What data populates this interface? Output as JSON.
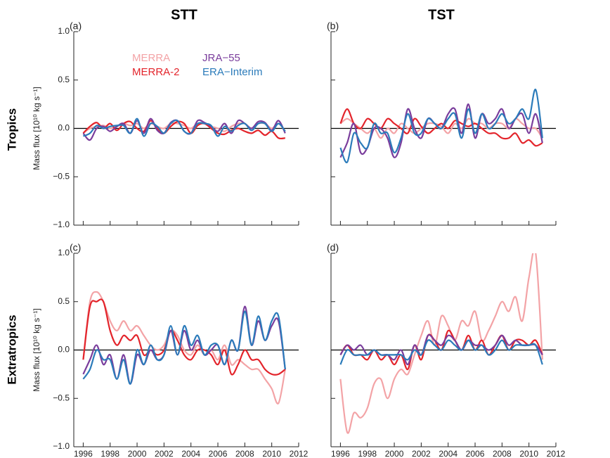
{
  "column_titles": [
    "STT",
    "TST"
  ],
  "row_labels": [
    "Tropics",
    "Extratropics"
  ],
  "legend": [
    {
      "name": "MERRA",
      "color": "#f3a3a6"
    },
    {
      "name": "MERRA-2",
      "color": "#e3242b"
    },
    {
      "name": "JRA−55",
      "color": "#7a3d9c"
    },
    {
      "name": "ERA−Interim",
      "color": "#2b7bba"
    }
  ],
  "chart_data": [
    {
      "type": "line",
      "panel_label": "(a)",
      "ylabel": "Mass flux [10¹⁰ kg s⁻¹]",
      "xlim": [
        1995.3,
        2012
      ],
      "ylim": [
        -1.0,
        1.0
      ],
      "xtick_labels": false,
      "ytick_labels": true,
      "hline": 0,
      "xticks": [
        1996,
        1998,
        2000,
        2002,
        2004,
        2006,
        2008,
        2010,
        2012
      ],
      "yticks": [
        {
          "value": -1.0,
          "label": "−1.0"
        },
        {
          "value": -0.5,
          "label": "−0.5"
        },
        {
          "value": 0.0,
          "label": "0.0"
        },
        {
          "value": 0.5,
          "label": "0.5"
        },
        {
          "value": 1.0,
          "label": "1.0"
        }
      ],
      "x": [
        1996,
        1996.5,
        1997,
        1997.5,
        1998,
        1998.5,
        1999,
        1999.5,
        2000,
        2000.5,
        2001,
        2001.5,
        2002,
        2002.5,
        2003,
        2003.5,
        2004,
        2004.5,
        2005,
        2005.5,
        2006,
        2006.5,
        2007,
        2007.5,
        2008,
        2008.5,
        2009,
        2009.5,
        2010,
        2010.5,
        2011
      ],
      "series": [
        {
          "color": "#f3a3a6",
          "values": [
            -0.05,
            0.0,
            0.02,
            0.03,
            0.0,
            0.02,
            0.05,
            0.03,
            0.05,
            0.0,
            0.05,
            0.02,
            0.0,
            0.05,
            0.05,
            0.03,
            0.0,
            0.05,
            0.05,
            0.02,
            0.0,
            -0.03,
            0.02,
            0.05,
            0.05,
            0.0,
            0.05,
            0.05,
            0.0,
            0.05,
            -0.03
          ]
        },
        {
          "color": "#e3242b",
          "values": [
            -0.05,
            0.02,
            0.06,
            0.0,
            0.05,
            -0.02,
            0.05,
            0.07,
            0.0,
            -0.03,
            0.08,
            0.0,
            -0.05,
            0.02,
            0.07,
            0.05,
            -0.05,
            0.03,
            0.05,
            0.0,
            -0.05,
            -0.06,
            -0.02,
            0.0,
            -0.03,
            -0.05,
            -0.02,
            -0.07,
            -0.03,
            -0.1,
            -0.1
          ]
        },
        {
          "color": "#7a3d9c",
          "values": [
            -0.05,
            -0.12,
            0.0,
            0.02,
            -0.03,
            0.02,
            0.05,
            -0.05,
            0.08,
            -0.05,
            0.1,
            -0.02,
            -0.05,
            0.06,
            0.08,
            -0.03,
            -0.05,
            0.08,
            0.06,
            0.02,
            -0.03,
            0.05,
            -0.05,
            0.08,
            0.05,
            0.0,
            0.07,
            0.06,
            -0.02,
            0.08,
            -0.05
          ]
        },
        {
          "color": "#2b7bba",
          "values": [
            -0.08,
            -0.05,
            0.03,
            0.0,
            0.02,
            0.03,
            0.03,
            -0.05,
            0.1,
            -0.08,
            0.05,
            0.02,
            -0.05,
            0.05,
            0.08,
            -0.03,
            -0.05,
            0.05,
            0.05,
            0.03,
            -0.08,
            0.02,
            -0.03,
            0.03,
            0.05,
            -0.02,
            0.05,
            0.05,
            -0.03,
            0.05,
            -0.03
          ]
        }
      ]
    },
    {
      "type": "line",
      "panel_label": "(b)",
      "xlim": [
        1995.3,
        2012
      ],
      "ylim": [
        -1.0,
        1.0
      ],
      "xtick_labels": false,
      "ytick_labels": false,
      "hline": 0,
      "xticks": [
        1996,
        1998,
        2000,
        2002,
        2004,
        2006,
        2008,
        2010,
        2012
      ],
      "yticks": [
        -1.0,
        -0.5,
        0.0,
        0.5,
        1.0
      ],
      "x": [
        1996,
        1996.5,
        1997,
        1997.5,
        1998,
        1998.5,
        1999,
        1999.5,
        2000,
        2000.5,
        2001,
        2001.5,
        2002,
        2002.5,
        2003,
        2003.5,
        2004,
        2004.5,
        2005,
        2005.5,
        2006,
        2006.5,
        2007,
        2007.5,
        2008,
        2008.5,
        2009,
        2009.5,
        2010,
        2010.5,
        2011
      ],
      "series": [
        {
          "color": "#f3a3a6",
          "values": [
            0.05,
            0.1,
            0.05,
            0.0,
            -0.05,
            0.0,
            -0.1,
            0.0,
            -0.05,
            0.05,
            0.0,
            -0.05,
            0.0,
            0.05,
            0.05,
            0.02,
            -0.05,
            0.05,
            0.0,
            0.1,
            0.05,
            0.05,
            0.0,
            0.05,
            0.05,
            0.0,
            0.1,
            0.05,
            0.0,
            0.0,
            -0.1
          ]
        },
        {
          "color": "#e3242b",
          "values": [
            0.05,
            0.2,
            0.05,
            0.0,
            0.1,
            0.05,
            0.0,
            0.1,
            0.05,
            0.0,
            -0.05,
            0.1,
            0.02,
            -0.05,
            0.0,
            0.05,
            0.0,
            0.08,
            0.05,
            0.02,
            0.05,
            0.0,
            -0.05,
            -0.05,
            -0.1,
            -0.1,
            -0.05,
            -0.15,
            -0.12,
            -0.18,
            -0.15
          ]
        },
        {
          "color": "#7a3d9c",
          "values": [
            -0.3,
            -0.15,
            0.05,
            -0.25,
            -0.2,
            0.0,
            0.0,
            -0.1,
            -0.3,
            -0.15,
            0.2,
            0.0,
            -0.1,
            0.1,
            0.05,
            0.0,
            0.15,
            0.2,
            -0.05,
            0.25,
            -0.1,
            0.15,
            0.05,
            0.1,
            0.2,
            0.0,
            0.1,
            0.15,
            -0.05,
            0.15,
            -0.15
          ]
        },
        {
          "color": "#2b7bba",
          "values": [
            -0.2,
            -0.35,
            -0.05,
            -0.15,
            -0.2,
            0.05,
            -0.05,
            -0.05,
            -0.25,
            -0.1,
            0.15,
            -0.05,
            -0.05,
            0.1,
            0.05,
            0.0,
            0.1,
            0.15,
            -0.1,
            0.2,
            -0.05,
            0.15,
            0.0,
            0.05,
            0.15,
            0.05,
            0.1,
            0.2,
            0.1,
            0.4,
            -0.1
          ]
        }
      ]
    },
    {
      "type": "line",
      "panel_label": "(c)",
      "ylabel": "Mass flux [10¹⁰ kg s⁻¹]",
      "xlim": [
        1995.3,
        2012
      ],
      "ylim": [
        -1.0,
        1.0
      ],
      "xtick_labels": true,
      "ytick_labels": true,
      "hline": 0,
      "xticks": [
        1996,
        1998,
        2000,
        2002,
        2004,
        2006,
        2008,
        2010,
        2012
      ],
      "yticks": [
        {
          "value": -1.0,
          "label": "−1.0"
        },
        {
          "value": -0.5,
          "label": "−0.5"
        },
        {
          "value": 0.0,
          "label": "0.0"
        },
        {
          "value": 0.5,
          "label": "0.5"
        },
        {
          "value": 1.0,
          "label": "1.0"
        }
      ],
      "x": [
        1996,
        1996.5,
        1997,
        1997.5,
        1998,
        1998.5,
        1999,
        1999.5,
        2000,
        2000.5,
        2001,
        2001.5,
        2002,
        2002.5,
        2003,
        2003.5,
        2004,
        2004.5,
        2005,
        2005.5,
        2006,
        2006.5,
        2007,
        2007.5,
        2008,
        2008.5,
        2009,
        2009.5,
        2010,
        2010.5,
        2011
      ],
      "series": [
        {
          "color": "#f3a3a6",
          "values": [
            -0.1,
            0.5,
            0.6,
            0.5,
            0.3,
            0.2,
            0.3,
            0.2,
            0.25,
            0.15,
            0.05,
            0.0,
            0.05,
            0.2,
            0.15,
            0.0,
            -0.05,
            0.05,
            -0.05,
            0.0,
            -0.1,
            0.05,
            -0.15,
            -0.1,
            -0.15,
            -0.2,
            -0.2,
            -0.3,
            -0.4,
            -0.55,
            -0.2
          ]
        },
        {
          "color": "#e3242b",
          "values": [
            -0.1,
            0.45,
            0.5,
            0.5,
            0.2,
            0.05,
            0.15,
            0.1,
            0.15,
            -0.05,
            0.0,
            -0.05,
            0.0,
            0.2,
            0.1,
            -0.05,
            -0.1,
            0.0,
            0.0,
            -0.05,
            -0.15,
            0.0,
            -0.25,
            -0.15,
            0.0,
            -0.1,
            -0.1,
            -0.2,
            -0.25,
            -0.25,
            -0.2
          ]
        },
        {
          "color": "#7a3d9c",
          "values": [
            -0.25,
            -0.1,
            0.05,
            -0.15,
            -0.05,
            -0.3,
            -0.05,
            -0.35,
            -0.05,
            -0.15,
            0.0,
            -0.1,
            -0.05,
            0.2,
            -0.05,
            0.2,
            0.0,
            0.1,
            -0.05,
            0.0,
            0.05,
            -0.15,
            0.1,
            0.0,
            0.45,
            0.05,
            0.3,
            0.1,
            0.25,
            0.3,
            -0.2
          ]
        },
        {
          "color": "#2b7bba",
          "values": [
            -0.3,
            -0.2,
            0.0,
            -0.1,
            -0.1,
            -0.3,
            -0.1,
            -0.35,
            0.0,
            -0.15,
            0.05,
            -0.1,
            -0.05,
            0.25,
            -0.05,
            0.25,
            0.05,
            0.15,
            -0.05,
            0.05,
            0.05,
            -0.15,
            0.1,
            0.0,
            0.4,
            0.05,
            0.35,
            0.1,
            0.3,
            0.35,
            -0.2
          ]
        }
      ]
    },
    {
      "type": "line",
      "panel_label": "(d)",
      "xlim": [
        1995.3,
        2012
      ],
      "ylim": [
        -1.0,
        1.0
      ],
      "xtick_labels": true,
      "ytick_labels": false,
      "hline": 0,
      "xticks": [
        1996,
        1998,
        2000,
        2002,
        2004,
        2006,
        2008,
        2010,
        2012
      ],
      "yticks": [
        -1.0,
        -0.5,
        0.0,
        0.5,
        1.0
      ],
      "x": [
        1996,
        1996.5,
        1997,
        1997.5,
        1998,
        1998.5,
        1999,
        1999.5,
        2000,
        2000.5,
        2001,
        2001.5,
        2002,
        2002.5,
        2003,
        2003.5,
        2004,
        2004.5,
        2005,
        2005.5,
        2006,
        2006.5,
        2007,
        2007.5,
        2008,
        2008.5,
        2009,
        2009.5,
        2010,
        2010.5,
        2011
      ],
      "series": [
        {
          "color": "#f3a3a6",
          "values": [
            -0.3,
            -0.85,
            -0.65,
            -0.7,
            -0.6,
            -0.35,
            -0.3,
            -0.5,
            -0.3,
            -0.2,
            -0.25,
            -0.05,
            0.15,
            0.3,
            0.05,
            0.35,
            0.25,
            0.1,
            0.3,
            0.25,
            0.4,
            0.1,
            0.2,
            0.35,
            0.5,
            0.4,
            0.55,
            0.3,
            0.75,
            1.0,
            -0.1
          ]
        },
        {
          "color": "#e3242b",
          "values": [
            -0.05,
            0.05,
            -0.05,
            -0.05,
            -0.1,
            0.0,
            -0.1,
            -0.05,
            -0.15,
            -0.05,
            -0.2,
            0.05,
            -0.1,
            0.15,
            0.1,
            0.0,
            0.2,
            0.1,
            0.0,
            0.15,
            0.0,
            0.1,
            -0.05,
            0.05,
            0.15,
            0.0,
            0.1,
            0.1,
            0.05,
            0.1,
            -0.05
          ]
        },
        {
          "color": "#7a3d9c",
          "values": [
            -0.05,
            0.05,
            0.0,
            0.05,
            -0.05,
            0.0,
            -0.05,
            -0.05,
            -0.1,
            0.0,
            -0.15,
            0.05,
            -0.05,
            0.15,
            0.1,
            0.05,
            0.15,
            0.1,
            0.0,
            0.1,
            0.05,
            0.05,
            0.0,
            0.05,
            0.15,
            0.05,
            0.1,
            0.05,
            0.05,
            0.05,
            -0.05
          ]
        },
        {
          "color": "#2b7bba",
          "values": [
            -0.15,
            0.0,
            -0.05,
            -0.05,
            -0.05,
            0.0,
            -0.05,
            -0.05,
            -0.05,
            -0.05,
            -0.1,
            0.0,
            -0.05,
            0.1,
            0.05,
            0.0,
            0.1,
            0.05,
            0.0,
            0.1,
            0.0,
            0.05,
            -0.05,
            0.0,
            0.1,
            0.0,
            0.05,
            0.05,
            0.05,
            0.05,
            -0.15
          ]
        }
      ]
    }
  ]
}
